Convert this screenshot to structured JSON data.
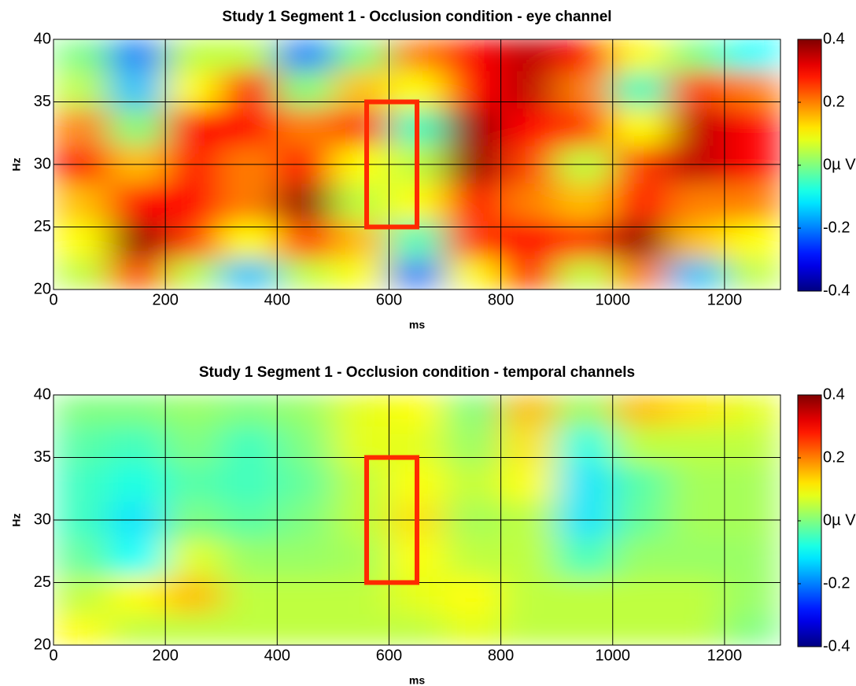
{
  "chart_data": [
    {
      "type": "heatmap",
      "title": "Study 1 Segment 1 - Occlusion condition - eye channel",
      "xlabel": "ms",
      "ylabel": "Hz",
      "x": [
        50,
        150,
        250,
        350,
        450,
        550,
        650,
        750,
        850,
        950,
        1050,
        1150,
        1250
      ],
      "y": [
        21,
        24,
        27,
        30,
        33,
        36,
        39
      ],
      "values": [
        [
          0.05,
          0.25,
          0.05,
          -0.15,
          0.05,
          0.1,
          -0.2,
          0.1,
          0.3,
          0.05,
          0.2,
          -0.15,
          0.05
        ],
        [
          0.1,
          0.38,
          0.25,
          0.1,
          0.25,
          0.15,
          -0.05,
          0.25,
          0.3,
          0.25,
          0.38,
          0.15,
          0.1
        ],
        [
          0.15,
          0.3,
          0.3,
          0.2,
          0.38,
          0.05,
          0.1,
          0.3,
          0.2,
          0.15,
          0.3,
          0.2,
          0.2
        ],
        [
          0.3,
          0.15,
          0.3,
          0.2,
          0.3,
          0.1,
          0.05,
          0.38,
          0.25,
          0.05,
          0.25,
          0.35,
          0.3
        ],
        [
          0.2,
          0,
          0.3,
          0.3,
          0.2,
          0.25,
          -0.05,
          0.38,
          0.3,
          0.25,
          0.1,
          0.35,
          0.3
        ],
        [
          0.05,
          -0.15,
          0.1,
          0.3,
          0,
          0.15,
          0.1,
          0.3,
          0.35,
          0.2,
          -0.05,
          0.25,
          0.2
        ],
        [
          0,
          -0.2,
          0.05,
          0.05,
          -0.2,
          0,
          0.2,
          0.3,
          0.35,
          0.3,
          0.1,
          0,
          -0.1
        ]
      ],
      "xlim": [
        0,
        1300
      ],
      "ylim": [
        20,
        40
      ],
      "xticks": [
        0,
        200,
        400,
        600,
        800,
        1000,
        1200
      ],
      "yticks": [
        20,
        25,
        30,
        35,
        40
      ],
      "clim": [
        -0.4,
        0.4
      ],
      "cticks": [
        0.4,
        0.2,
        {
          "value": 0,
          "label": "0µ V"
        },
        -0.2,
        -0.4
      ],
      "colormap": "jet",
      "grid": true,
      "highlight_box": {
        "xlim": [
          560,
          650
        ],
        "ylim": [
          25,
          35
        ],
        "color": "#ff2a00"
      }
    },
    {
      "type": "heatmap",
      "title": "Study 1 Segment 1 - Occlusion condition - temporal channels",
      "xlabel": "ms",
      "ylabel": "Hz",
      "x": [
        50,
        150,
        250,
        350,
        450,
        550,
        650,
        750,
        850,
        950,
        1050,
        1150,
        1250
      ],
      "y": [
        21,
        24,
        27,
        30,
        33,
        36,
        39
      ],
      "values": [
        [
          0.1,
          0.05,
          0.05,
          0.05,
          0.05,
          0.05,
          0.05,
          0.08,
          0.05,
          0.05,
          0.05,
          0.05,
          0
        ],
        [
          0.05,
          0.1,
          0.15,
          0.05,
          0.05,
          0.05,
          0.08,
          0.1,
          0.05,
          0.05,
          0.05,
          0.05,
          0.02
        ],
        [
          -0.02,
          -0.1,
          0.08,
          0.02,
          0.02,
          0.03,
          0.1,
          0.05,
          0.05,
          -0.05,
          0.02,
          0.02,
          0.02
        ],
        [
          -0.05,
          -0.12,
          0,
          -0.03,
          0,
          0.05,
          0.12,
          0.03,
          0.05,
          -0.12,
          -0.02,
          0.03,
          0.03
        ],
        [
          -0.05,
          -0.08,
          -0.03,
          -0.05,
          -0.02,
          0.05,
          0.1,
          0.05,
          0.1,
          -0.12,
          -0.03,
          0.03,
          0.03
        ],
        [
          -0.03,
          -0.05,
          0,
          -0.05,
          0,
          0.08,
          0.08,
          0.02,
          0.12,
          -0.08,
          0.05,
          0.05,
          0.05
        ],
        [
          0,
          0,
          0.02,
          0,
          0.02,
          0.08,
          0.1,
          0,
          0.15,
          0.02,
          0.15,
          0.12,
          0.08
        ]
      ],
      "xlim": [
        0,
        1300
      ],
      "ylim": [
        20,
        40
      ],
      "xticks": [
        0,
        200,
        400,
        600,
        800,
        1000,
        1200
      ],
      "yticks": [
        20,
        25,
        30,
        35,
        40
      ],
      "clim": [
        -0.4,
        0.4
      ],
      "cticks": [
        0.4,
        0.2,
        {
          "value": 0,
          "label": "0µ V"
        },
        -0.2,
        -0.4
      ],
      "colormap": "jet",
      "grid": true,
      "highlight_box": {
        "xlim": [
          560,
          650
        ],
        "ylim": [
          25,
          35
        ],
        "color": "#ff2a00"
      }
    }
  ]
}
